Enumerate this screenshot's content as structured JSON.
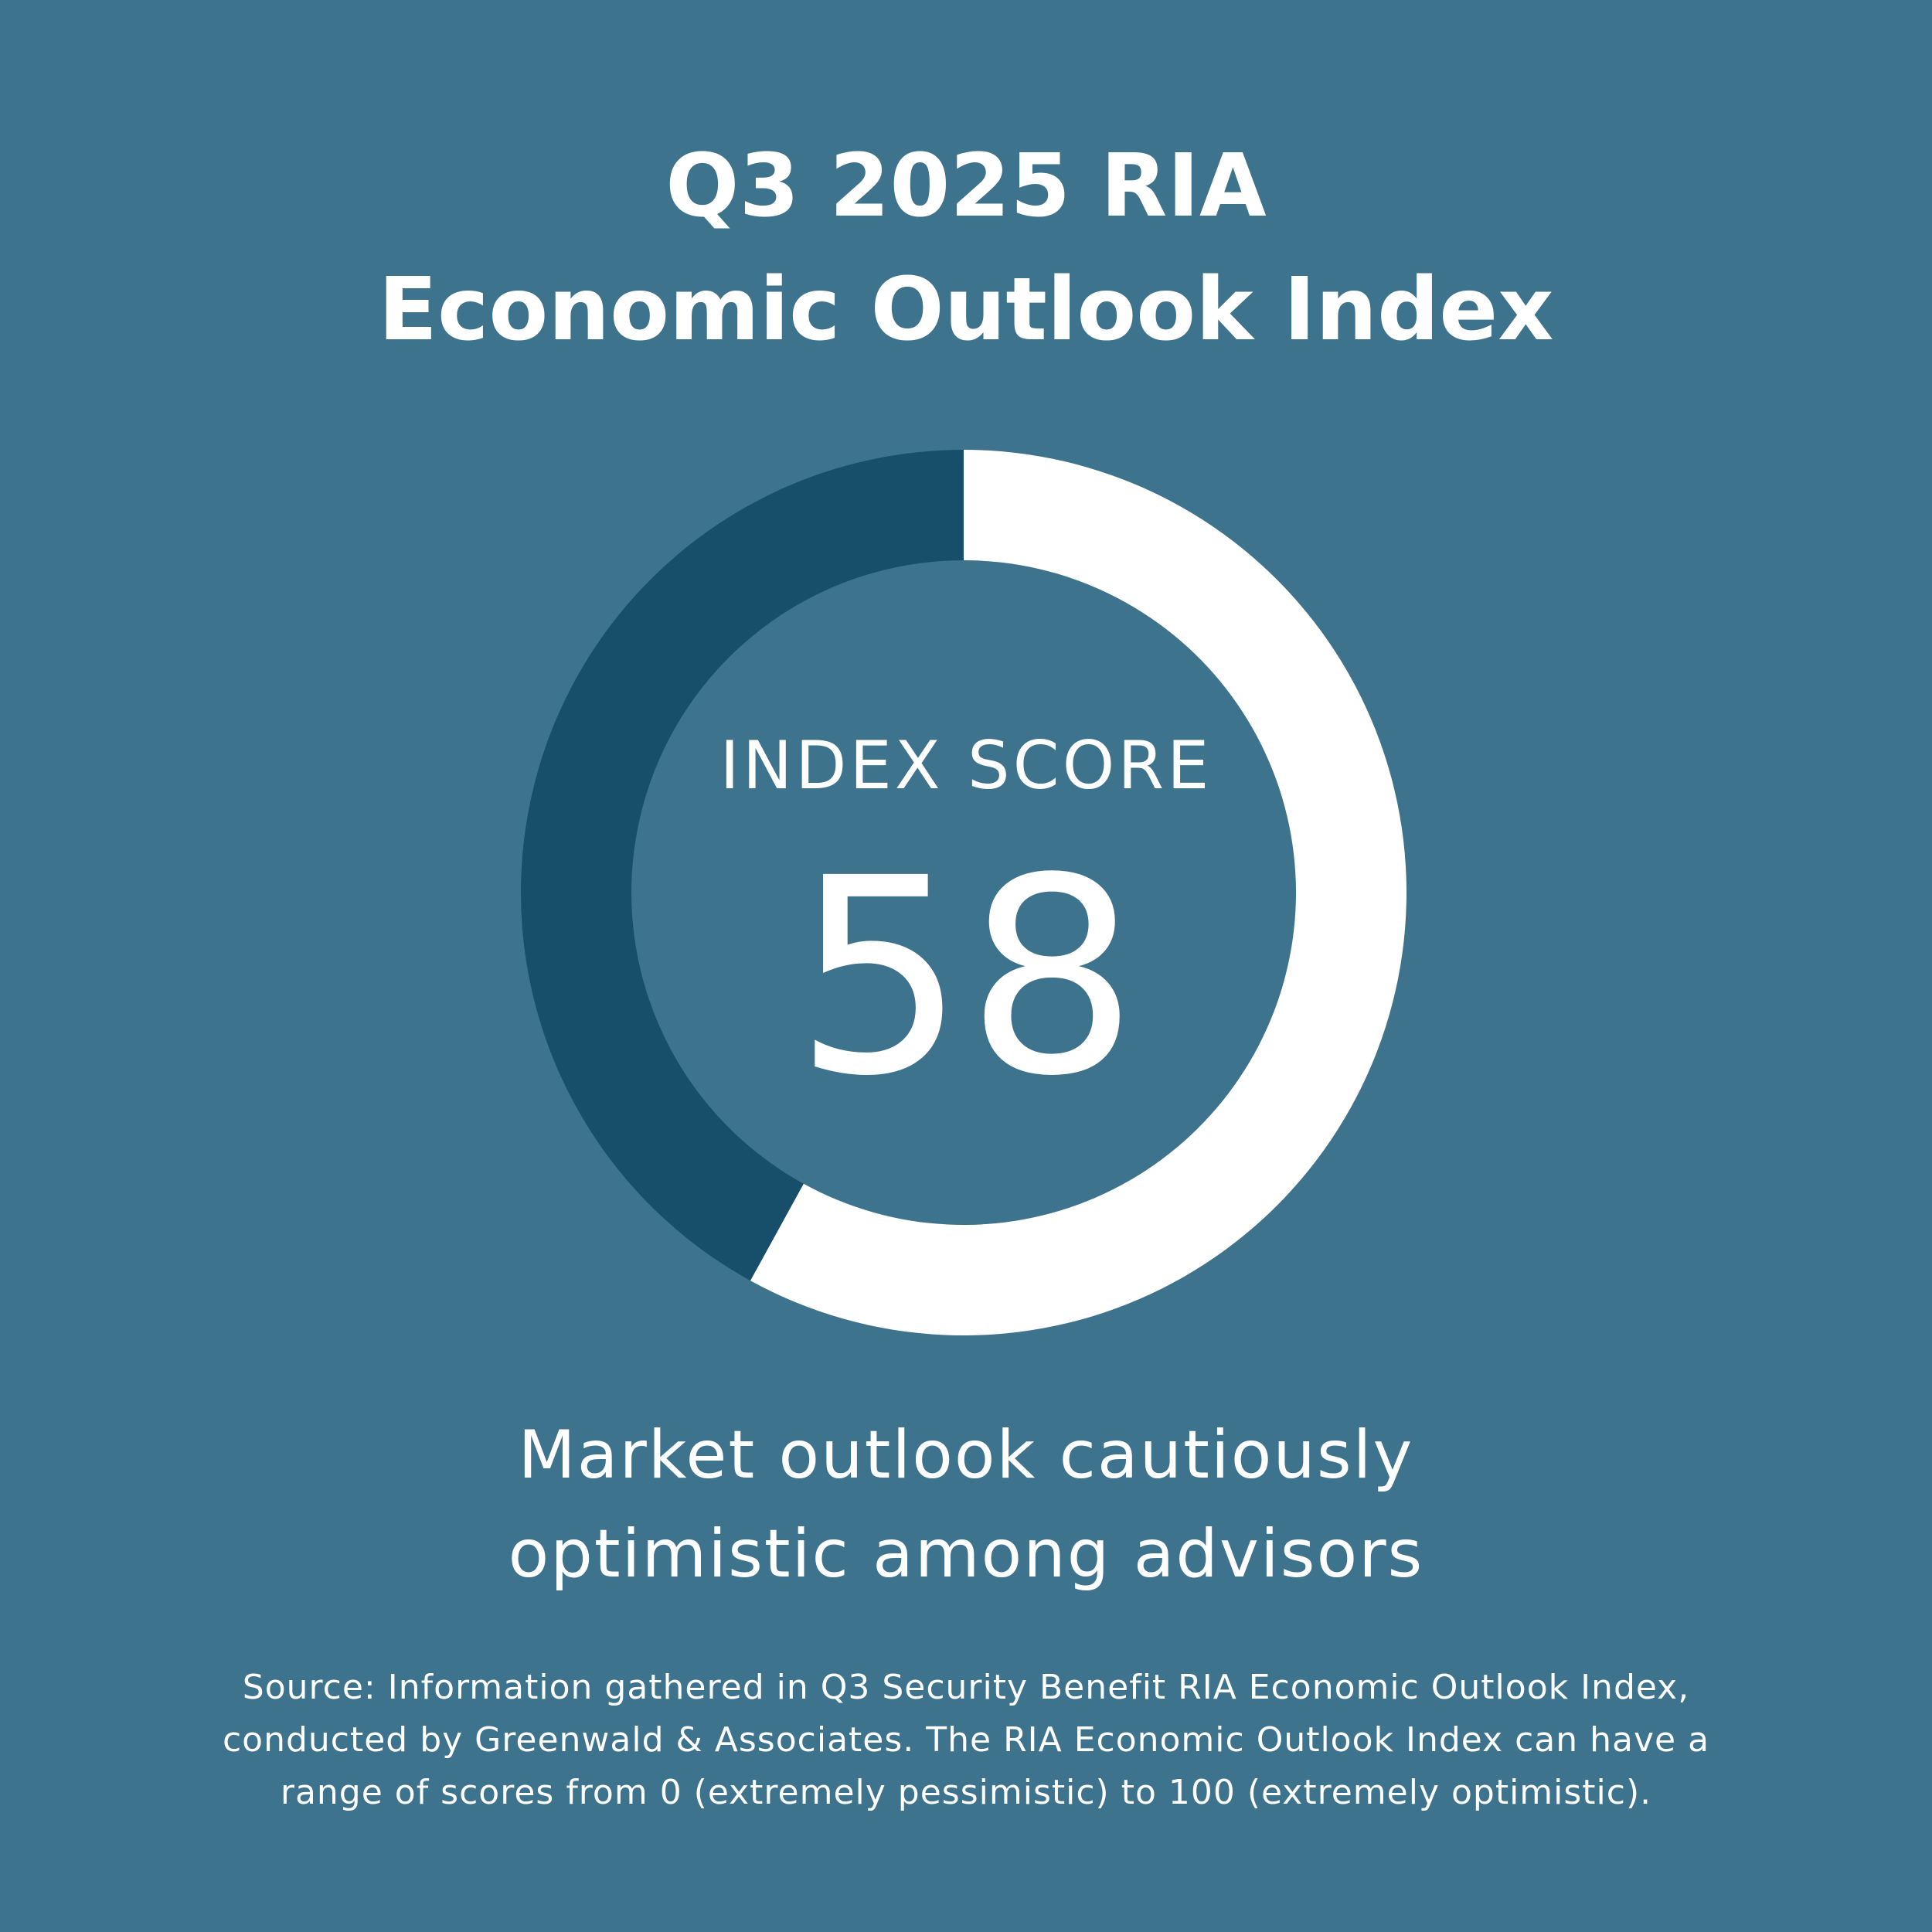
{
  "title": {
    "line1": "Q3 2025 RIA",
    "line2": "Economic Outlook Index"
  },
  "chart_data": {
    "type": "pie",
    "variant": "donut",
    "score_label": "INDEX SCORE",
    "score_value": "58",
    "value": 58,
    "range": [
      0,
      100
    ],
    "segments": [
      {
        "value": 58,
        "color": "#ffffff"
      },
      {
        "value": 42,
        "color": "#174e6a"
      }
    ]
  },
  "subtitle": {
    "line1": "Market outlook cautiously",
    "line2": "optimistic among advisors"
  },
  "source": {
    "line1": "Source: Information gathered in Q3 Security Benefit RIA Economic Outlook Index,",
    "line2": "conducted by Greenwald & Associates. The RIA Economic Outlook Index can have a",
    "line3": "range of scores from 0 (extremely pessimistic) to 100 (extremely optimistic)."
  },
  "colors": {
    "background": "#3e738e",
    "text": "#ffffff"
  }
}
